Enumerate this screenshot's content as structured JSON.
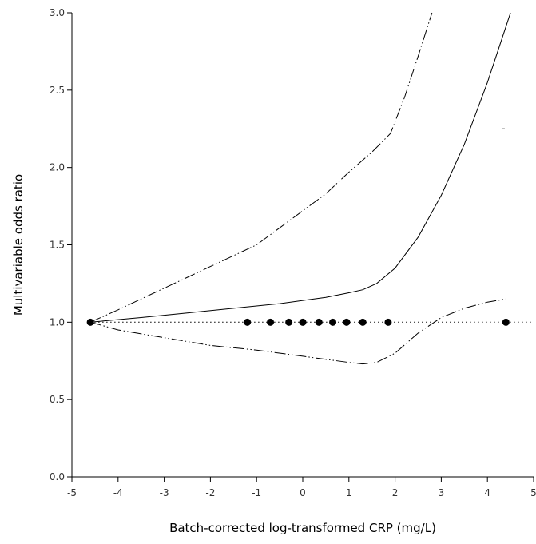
{
  "chart_data": {
    "type": "line",
    "title": "",
    "xlabel": "Batch-corrected log-transformed CRP (mg/L)",
    "ylabel": "Multivariable odds ratio",
    "xlim": [
      -5,
      5
    ],
    "ylim": [
      0,
      3
    ],
    "xticks": [
      -5,
      -4,
      -3,
      -2,
      -1,
      0,
      1,
      2,
      3,
      4,
      5
    ],
    "yticks": [
      0.0,
      0.5,
      1.0,
      1.5,
      2.0,
      2.5,
      3.0
    ],
    "xtick_labels": [
      "-5",
      "-4",
      "-3",
      "-2",
      "-1",
      "0",
      "1",
      "2",
      "3",
      "4",
      "5"
    ],
    "ytick_labels": [
      "0.0",
      "0.5",
      "1.0",
      "1.5",
      "2.0",
      "2.5",
      "3.0"
    ],
    "grid": false,
    "legend": "none",
    "series": [
      {
        "style": "solid",
        "color": "#000000",
        "x": [
          -4.6,
          -3.5,
          -2.5,
          -1.5,
          -0.5,
          0.5,
          1.0,
          1.3,
          1.6,
          2.0,
          2.5,
          3.0,
          3.5,
          4.0,
          4.5
        ],
        "y": [
          1.0,
          1.03,
          1.06,
          1.09,
          1.12,
          1.16,
          1.19,
          1.21,
          1.25,
          1.35,
          1.55,
          1.82,
          2.15,
          2.55,
          3.0
        ]
      },
      {
        "style": "dash-dot-dot",
        "color": "#000000",
        "x": [
          -4.6,
          -4.0,
          -3.0,
          -2.0,
          -1.0,
          0.0,
          0.5,
          1.0,
          1.5,
          1.9,
          2.2,
          2.5,
          2.8
        ],
        "y": [
          1.0,
          1.08,
          1.22,
          1.36,
          1.5,
          1.72,
          1.83,
          1.97,
          2.1,
          2.22,
          2.45,
          2.72,
          3.0
        ]
      },
      {
        "style": "dash-dot-dot",
        "color": "#000000",
        "x": [
          -4.6,
          -4.0,
          -3.0,
          -2.0,
          -1.0,
          0.0,
          0.5,
          1.0,
          1.3,
          1.6,
          2.0,
          2.5,
          3.0,
          3.5,
          4.0,
          4.4
        ],
        "y": [
          1.0,
          0.95,
          0.9,
          0.85,
          0.82,
          0.78,
          0.76,
          0.74,
          0.73,
          0.74,
          0.8,
          0.93,
          1.03,
          1.09,
          1.13,
          1.15
        ]
      },
      {
        "style": "dotted",
        "color": "#000000",
        "x": [
          -4.6,
          5.0
        ],
        "y": [
          1.0,
          1.0
        ]
      }
    ],
    "reference_points": {
      "x": [
        -4.6,
        -1.2,
        -0.7,
        -0.3,
        0.0,
        0.35,
        0.65,
        0.95,
        1.3,
        1.85,
        4.4
      ],
      "y": [
        1.0,
        1.0,
        1.0,
        1.0,
        1.0,
        1.0,
        1.0,
        1.0,
        1.0,
        1.0,
        1.0
      ]
    },
    "stray_marks": {
      "x": [
        4.35
      ],
      "y": [
        2.25
      ]
    }
  }
}
